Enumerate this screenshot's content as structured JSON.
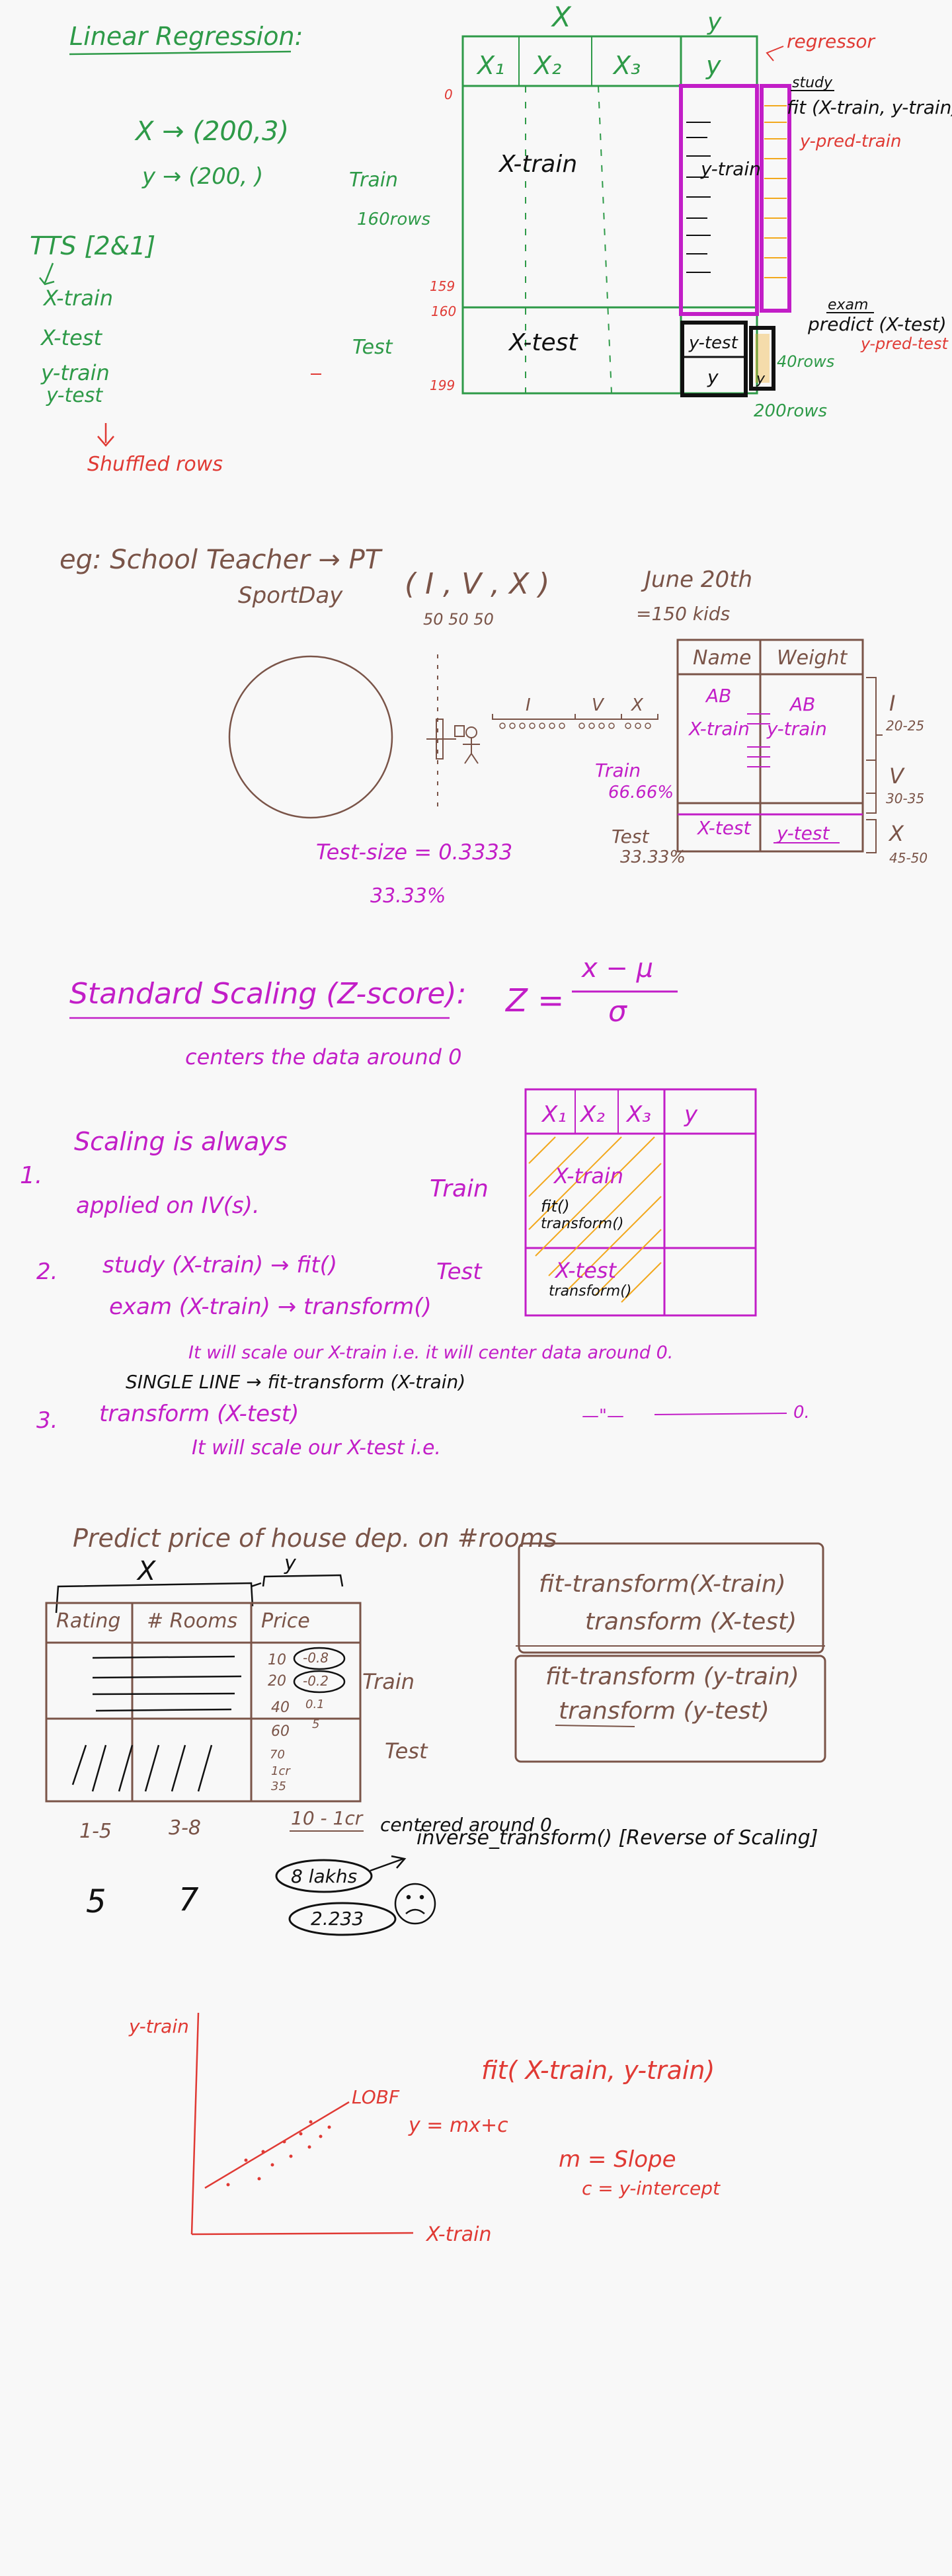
{
  "colors": {
    "green": "#2e9a48",
    "red": "#e03a34",
    "magenta": "#c21ec7",
    "brown": "#7a5448",
    "black": "#111111",
    "orange": "#f2a81d",
    "background": "#f8f8f8"
  },
  "icons": [
    "person-stick-figure-icon",
    "sad-face-icon",
    "bookshelf-icon"
  ],
  "section1": {
    "title": "Linear Regression:",
    "x_shape": "X → (200,3)",
    "y_shape": "y → (200, )",
    "tts": "TTS [2&1]",
    "tts_items": [
      "X-train",
      "X-test",
      "y-train",
      "y-test"
    ],
    "shuffled": "Shuffled rows",
    "train": "Train",
    "train_rows": "160rows",
    "test": "Test",
    "table_X": "X",
    "table_y": "y",
    "cols": [
      "X₁",
      "X₂",
      "X₃",
      "y"
    ],
    "row_marks": [
      "0",
      "159",
      "160",
      "199"
    ],
    "x_train": "X-train",
    "x_test": "X-test",
    "y_train": "y-train",
    "y_test": "y-test",
    "y": "y",
    "regressor": "regressor",
    "study": "study",
    "fit": "fit (X-train, y-train)",
    "y_pred_train": "y-pred-train",
    "exam": "exam",
    "predict": "predict (X-test)",
    "y_pred_test": "y-pred-test",
    "rows_40": "40rows",
    "rows_200": "200rows"
  },
  "section2": {
    "eg": "eg:  School Teacher → PT",
    "sportday": "SportDay",
    "classes": "( I , V , X )",
    "date": "June 20th",
    "counts": "50     50      50",
    "kids": "=150 kids",
    "roman": [
      "I",
      "V",
      "X"
    ],
    "col_name": "Name",
    "col_weight": "Weight",
    "ab1": "AB",
    "ab2": "AB",
    "x_train": "X-train",
    "y_train": "y-train",
    "x_test": "X-test",
    "y_test": "y-test",
    "train": "Train",
    "train_pct": "66.66%",
    "test": "Test",
    "test_pct": "33.33%",
    "ranges": [
      "20-25",
      "30-35",
      "45-50"
    ],
    "test_size": "Test-size = 0.3333",
    "percent": "33.33%"
  },
  "section3": {
    "title": "Standard Scaling (Z-score):",
    "formula_z": "Z =",
    "formula_num": "x − μ",
    "formula_den": "σ",
    "centers": "centers the data around 0",
    "s1_num": "1.",
    "s1_line1": "Scaling is always",
    "s1_line2": "applied on IV(s).",
    "train": "Train",
    "test": "Test",
    "cols": [
      "X₁",
      "X₂",
      "X₃",
      "y"
    ],
    "x_train": "X-train",
    "fit": "fit()",
    "transform": "transform()",
    "x_test": "X-test",
    "transform2": "transform()",
    "s2_num": "2.",
    "s2_line1": "study (X-train) → fit()",
    "s2_line2": "exam (X-train) → transform()",
    "scale_note": "It will scale our X-train i.e. it will center data around 0.",
    "single_line": "SINGLE LINE → fit-transform (X-train)",
    "s3_num": "3.",
    "s3_line": "transform (X-test)",
    "s3_note": "It will scale our X-test i.e.",
    "s3_ditto": "—\"—",
    "s3_zero": "0."
  },
  "section4": {
    "title": "Predict price of house dep. on #rooms",
    "X": "X",
    "y": "y",
    "cols": [
      "Rating",
      "# Rooms",
      "Price"
    ],
    "prices": [
      "10",
      "20",
      "40",
      "60",
      "70",
      "1cr",
      "35"
    ],
    "scaled": [
      "-0.8",
      "-0.2",
      "0.1",
      "5"
    ],
    "train": "Train",
    "test": "Test",
    "rating_range": "1-5",
    "rooms_range": "3-8",
    "price_range": "10 - 1cr",
    "box_line1": "fit-transform(X-train)",
    "box_line2": "transform (X-test)",
    "box_line3": "fit-transform (y-train)",
    "box_line4": "transform (y-test)",
    "centered": "centered around 0",
    "inverse": "inverse_transform()  [Reverse of Scaling]",
    "num5": "5",
    "num7": "7",
    "lakhs": "8 lakhs",
    "scaled_val": "2.233"
  },
  "section5": {
    "ylabel": "y-train",
    "xlabel": "X-train",
    "lobf": "LOBF",
    "eq": "y = mx+c",
    "fit": "fit( X-train, y-train)",
    "m": "m = Slope",
    "c": "c = y-intercept"
  }
}
